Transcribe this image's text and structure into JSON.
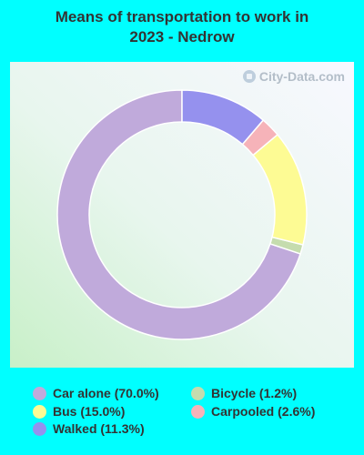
{
  "title_line1": "Means of transportation to work in",
  "title_line2": "2023 - Nedrow",
  "watermark": "City-Data.com",
  "watermark_icon": "city-data-logo-icon",
  "chart_data": {
    "type": "pie",
    "variant": "donut",
    "title": "Means of transportation to work in 2023 - Nedrow",
    "legend_position": "bottom",
    "series": [
      {
        "label": "Car alone (70.0%)",
        "name": "Car alone",
        "value": 70.0,
        "color": "#c0aadb"
      },
      {
        "label": "Bicycle (1.2%)",
        "name": "Bicycle",
        "value": 1.2,
        "color": "#c5dcae"
      },
      {
        "label": "Bus (15.0%)",
        "name": "Bus",
        "value": 15.0,
        "color": "#fdfb94"
      },
      {
        "label": "Carpooled (2.6%)",
        "name": "Carpooled",
        "value": 2.6,
        "color": "#f6b3b9"
      },
      {
        "label": "Walked (11.3%)",
        "name": "Walked",
        "value": 11.3,
        "color": "#9591ee"
      }
    ]
  }
}
